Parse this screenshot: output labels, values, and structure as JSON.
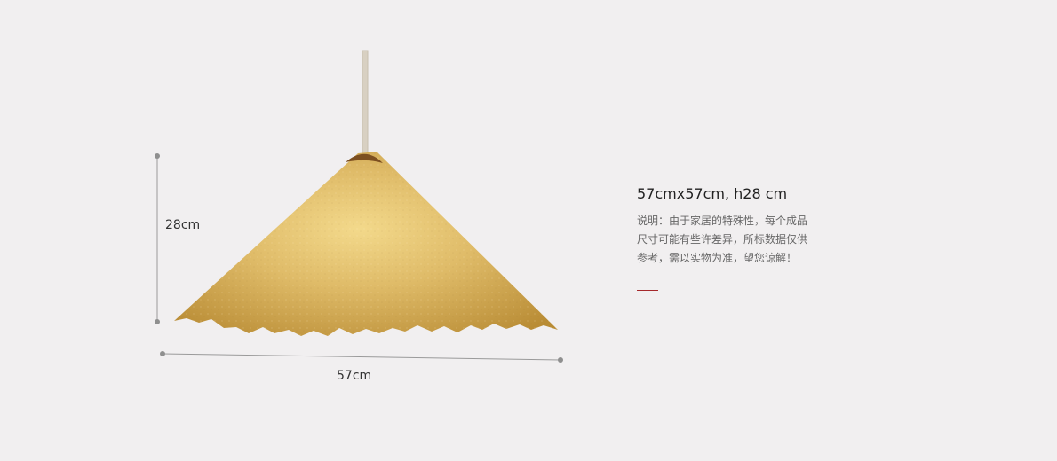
{
  "product": {
    "height_label": "28cm",
    "width_label": "57cm",
    "spec_title": "57cmx57cm, h28 cm",
    "spec_note": "说明：由于家居的特殊性，每个成品尺寸可能有些许差异，所标数据仅供参考，需以实物为准，望您谅解！"
  },
  "colors": {
    "background": "#f1eff0",
    "accent": "#a5282b",
    "shade_gold": "#d8b465",
    "dimension_line": "#9a9a9a"
  }
}
